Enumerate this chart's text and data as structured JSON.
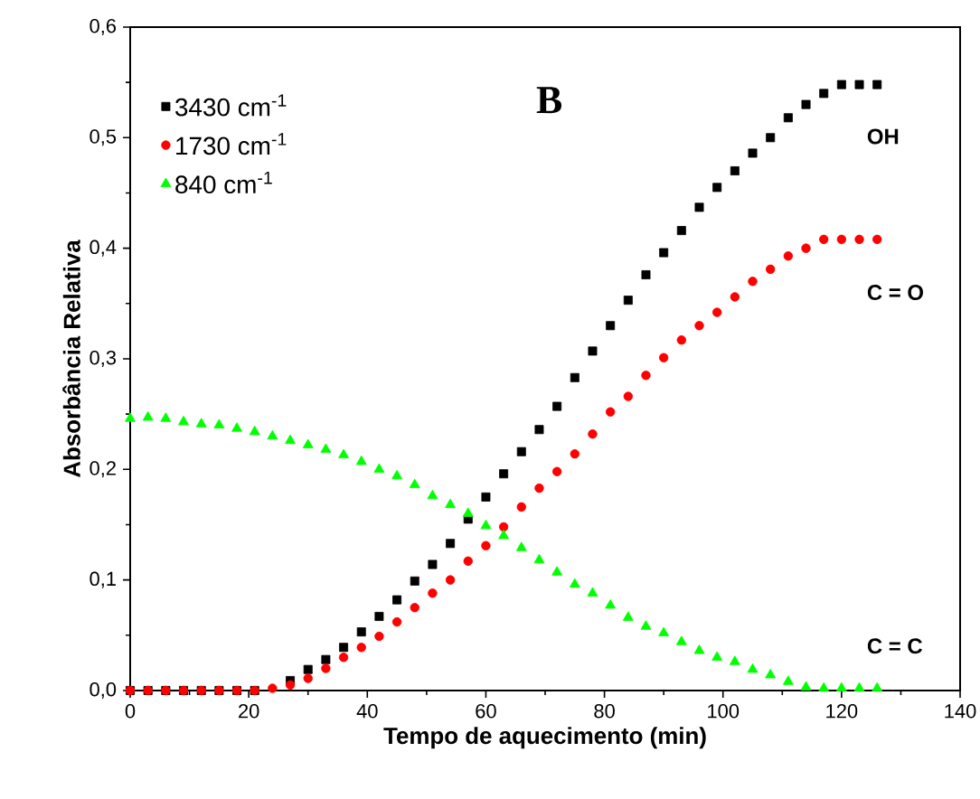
{
  "chart_data": {
    "type": "scatter",
    "xlabel": "Tempo de aquecimento (min)",
    "ylabel": "Absorbância Relativa",
    "annotations": [
      "B",
      "OH",
      "C = O",
      "C = C"
    ],
    "x": [
      0,
      3,
      6,
      9,
      12,
      15,
      18,
      21,
      24,
      27,
      30,
      33,
      36,
      39,
      42,
      45,
      48,
      51,
      54,
      57,
      60,
      63,
      66,
      69,
      72,
      75,
      78,
      81,
      84,
      87,
      90,
      93,
      96,
      99,
      102,
      105,
      108,
      111,
      114,
      117,
      120,
      123,
      126
    ],
    "series": [
      {
        "name": "3430 cm$^{-1}$",
        "color": "#000000",
        "marker": "square",
        "values": [
          0,
          0,
          0,
          0,
          0,
          0,
          0,
          0,
          null,
          0.009,
          0.019,
          0.028,
          0.039,
          0.053,
          0.067,
          0.082,
          0.099,
          0.114,
          0.133,
          0.155,
          0.175,
          0.196,
          0.216,
          0.236,
          0.257,
          0.283,
          0.307,
          0.33,
          0.353,
          0.376,
          0.396,
          0.416,
          0.437,
          0.455,
          0.47,
          0.486,
          0.5,
          0.518,
          0.53,
          0.54,
          0.548,
          0.548,
          0.548
        ]
      },
      {
        "name": "1730 cm$^{-1}$",
        "color": "#ff0000",
        "marker": "circle",
        "values": [
          0,
          0,
          0,
          0,
          0,
          0,
          0,
          0,
          0.002,
          0.005,
          0.011,
          0.02,
          0.03,
          0.039,
          0.049,
          0.062,
          0.075,
          0.088,
          0.1,
          0.117,
          0.131,
          0.148,
          0.166,
          0.183,
          0.198,
          0.214,
          0.232,
          0.252,
          0.266,
          0.285,
          0.301,
          0.317,
          0.33,
          0.342,
          0.356,
          0.37,
          0.381,
          0.393,
          0.4,
          0.408,
          0.408,
          0.408,
          0.408
        ]
      },
      {
        "name": "840 cm$^{-1}$",
        "color": "#00ff00",
        "marker": "triangle",
        "values": [
          0.246,
          0.247,
          0.246,
          0.243,
          0.241,
          0.24,
          0.237,
          0.234,
          0.23,
          0.226,
          0.222,
          0.218,
          0.213,
          0.207,
          0.2,
          0.194,
          0.186,
          0.176,
          0.168,
          0.16,
          0.149,
          0.14,
          0.129,
          0.118,
          0.107,
          0.096,
          0.088,
          0.077,
          0.066,
          0.058,
          0.052,
          0.044,
          0.036,
          0.03,
          0.026,
          0.019,
          0.014,
          0.008,
          0.003,
          0.002,
          0.002,
          0.002,
          0.002
        ]
      }
    ],
    "xlim": [
      0,
      140
    ],
    "xticks": [
      0,
      20,
      40,
      60,
      80,
      100,
      120,
      140
    ],
    "ylim": [
      0,
      0.6
    ],
    "yticks": [
      {
        "value": 0,
        "label": "0,0"
      },
      {
        "value": 0.1,
        "label": "0,1"
      },
      {
        "value": 0.2,
        "label": "0,2"
      },
      {
        "value": 0.3,
        "label": "0,3"
      },
      {
        "value": 0.4,
        "label": "0,4"
      },
      {
        "value": 0.5,
        "label": "0,5"
      },
      {
        "value": 0.6,
        "label": "0,6"
      }
    ],
    "grid": false,
    "legend": "top left"
  }
}
